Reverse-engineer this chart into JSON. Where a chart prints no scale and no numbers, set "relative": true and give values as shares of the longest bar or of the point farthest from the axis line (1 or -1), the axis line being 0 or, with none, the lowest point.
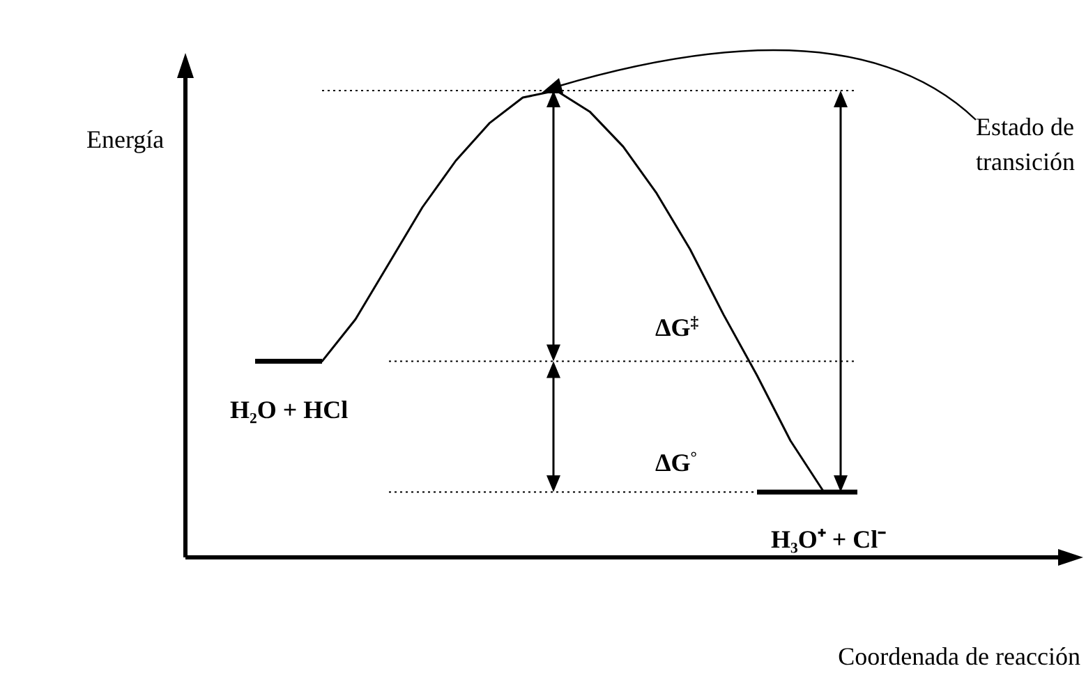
{
  "chart_data": {
    "type": "line",
    "relative": true,
    "ylabel": "Energía",
    "xlabel": "Coordenada de reacción",
    "categories": [
      null,
      null,
      null,
      null,
      null,
      null,
      null,
      null,
      null,
      null,
      null,
      null,
      null,
      null,
      null,
      null,
      null,
      null,
      null
    ],
    "series": [
      {
        "color": "#000000",
        "values": [
          0.42,
          0.42,
          0.42,
          0.51,
          0.63,
          0.75,
          0.85,
          0.93,
          0.985,
          1,
          0.955,
          0.88,
          0.78,
          0.66,
          0.52,
          0.39,
          0.25,
          0.14,
          0.14
        ]
      },
      {
        "color": "#000000",
        "values": [
          0.42,
          0.42,
          0.42,
          null,
          null,
          null,
          null,
          null,
          null,
          null,
          null,
          null,
          null,
          null,
          null,
          0.14,
          0.14,
          0.14,
          0.14
        ]
      },
      {
        "color": "#000000",
        "line_style": "dotted",
        "values": [
          null,
          null,
          1,
          1,
          1,
          1,
          1,
          1,
          1,
          1,
          1,
          1,
          1,
          1,
          1,
          1,
          1,
          1,
          1
        ]
      },
      {
        "color": "#000000",
        "line_style": "dotted",
        "values": [
          null,
          null,
          null,
          null,
          0.42,
          0.42,
          0.42,
          0.42,
          0.42,
          0.42,
          0.42,
          0.42,
          0.42,
          0.42,
          0.42,
          0.42,
          0.42,
          0.42,
          0.42
        ]
      },
      {
        "color": "#000000",
        "line_style": "dotted",
        "values": [
          null,
          null,
          null,
          null,
          0.14,
          0.14,
          0.14,
          0.14,
          0.14,
          0.14,
          0.14,
          0.14,
          0.14,
          0.14,
          0.14,
          0.14,
          null,
          null,
          null
        ]
      }
    ],
    "annotations": [
      "Estado de transición",
      "ΔG$^{‡}$",
      "ΔG$^{°}$",
      "H₂O + HCl",
      "H₃O⁺ + Cl⁻"
    ],
    "line_style": "solid"
  }
}
